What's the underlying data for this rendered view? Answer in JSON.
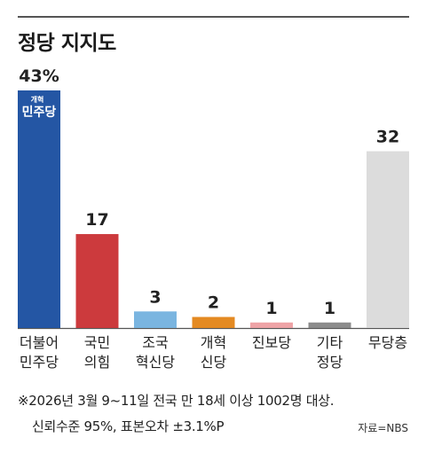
{
  "title": "정당 지지도",
  "chart_data": {
    "type": "bar",
    "categories": [
      [
        "더불어",
        "민주당"
      ],
      [
        "국민",
        "의힘"
      ],
      [
        "조국",
        "혁신당"
      ],
      [
        "개혁",
        "신당"
      ],
      [
        "진보당"
      ],
      [
        "기타",
        "정당"
      ],
      [
        "무당층"
      ]
    ],
    "values": [
      43,
      17,
      3,
      2,
      1,
      1,
      32
    ],
    "value_labels": [
      "43%",
      "17",
      "3",
      "2",
      "1",
      "1",
      "32"
    ],
    "colors": [
      "#2456a4",
      "#cc3a3d",
      "#7ab5e0",
      "#e48a22",
      "#eea3a6",
      "#8c8c8c",
      "#dcdcdc"
    ],
    "ylim": [
      0,
      43
    ],
    "grid": false,
    "logo": {
      "top": "개혁",
      "main": "민주당"
    }
  },
  "footnote": {
    "line1": "※2026년 3월 9~11일 전국 만 18세 이상 1002명 대상.",
    "line2": "신뢰수준 95%, 표본오차 ±3.1%P",
    "source": "자료=NBS"
  }
}
